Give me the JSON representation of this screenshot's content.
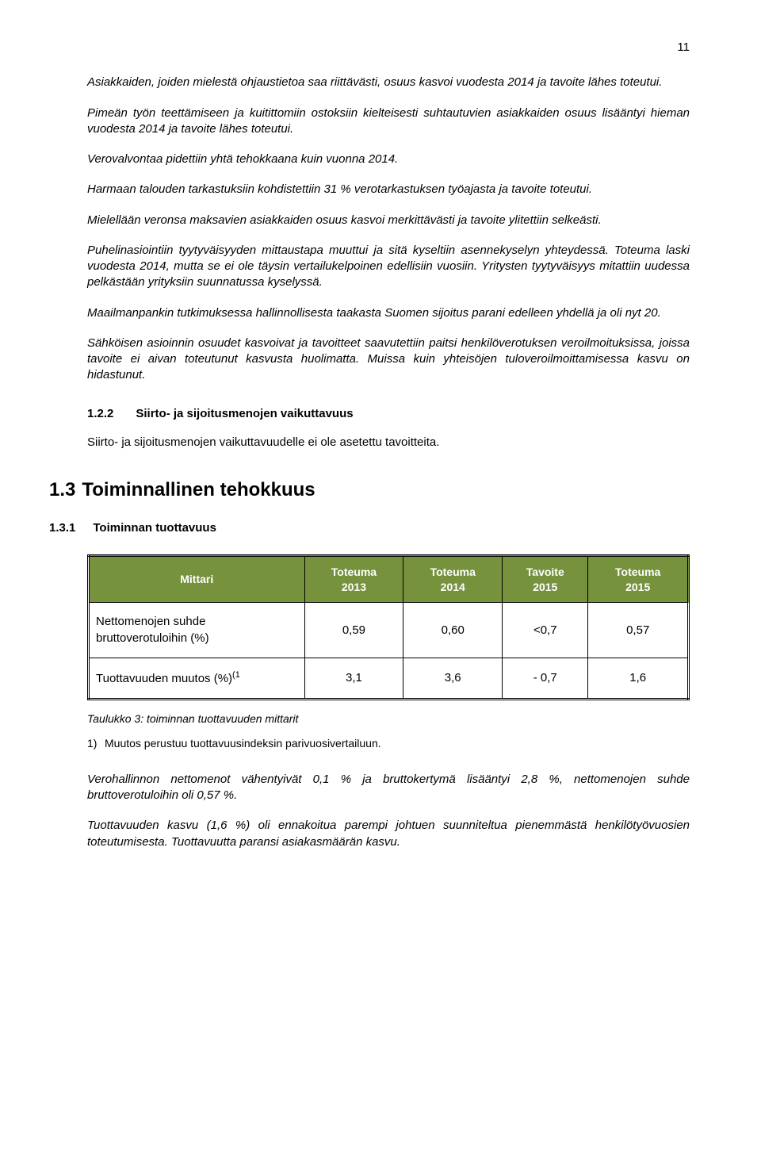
{
  "page_number": "11",
  "paragraphs": {
    "p1": "Asiakkaiden, joiden mielestä ohjaustietoa saa riittävästi, osuus kasvoi vuodesta 2014 ja tavoite lähes toteutui.",
    "p2": "Pimeän työn teettämiseen ja kuitittomiin ostoksiin kielteisesti suhtautuvien asiakkaiden osuus lisääntyi hieman vuodesta 2014 ja tavoite lähes toteutui.",
    "p3": "Verovalvontaa pidettiin yhtä tehokkaana kuin vuonna 2014.",
    "p4": "Harmaan talouden tarkastuksiin kohdistettiin 31 % verotarkastuksen työajasta ja tavoite toteutui.",
    "p5": "Mielellään veronsa maksavien asiakkaiden osuus kasvoi merkittävästi ja tavoite ylitettiin selkeästi.",
    "p6": "Puhelinasiointiin tyytyväisyyden mittaustapa muuttui ja sitä kyseltiin asennekyselyn yhteydessä. Toteuma laski vuodesta 2014, mutta se ei ole täysin vertailukelpoinen edellisiin vuosiin. Yritysten tyytyväisyys mitattiin uudessa pelkästään yrityksiin suunnatussa kyselyssä.",
    "p7": "Maailmanpankin tutkimuksessa hallinnollisesta taakasta Suomen sijoitus parani edelleen yhdellä ja oli nyt 20.",
    "p8": "Sähköisen asioinnin osuudet kasvoivat ja tavoitteet saavutettiin paitsi henkilöverotuksen veroilmoituksissa, joissa tavoite ei aivan toteutunut kasvusta huolimatta. Muissa kuin yhteisöjen tuloveroilmoittamisessa kasvu on hidastunut."
  },
  "section_122": {
    "num": "1.2.2",
    "title": "Siirto- ja sijoitusmenojen vaikuttavuus",
    "body": "Siirto- ja sijoitusmenojen vaikuttavuudelle ei ole asetettu tavoitteita."
  },
  "section_13": {
    "num": "1.3",
    "title": "Toiminnallinen tehokkuus"
  },
  "section_131": {
    "num": "1.3.1",
    "title": "Toiminnan tuottavuus"
  },
  "table": {
    "header_bg": "#76923c",
    "header_fg": "#ffffff",
    "columns": [
      "Mittari",
      "Toteuma 2013",
      "Toteuma 2014",
      "Tavoite 2015",
      "Toteuma 2015"
    ],
    "col_line1": [
      "Mittari",
      "Toteuma",
      "Toteuma",
      "Tavoite",
      "Toteuma"
    ],
    "col_line2": [
      "",
      "2013",
      "2014",
      "2015",
      "2015"
    ],
    "rows": [
      {
        "label": "Nettomenojen suhde bruttoverotuloihin (%)",
        "v": [
          "0,59",
          "0,60",
          "<0,7",
          "0,57"
        ]
      },
      {
        "label_pre": "Tuottavuuden muutos (%)",
        "label_sup": "(1",
        "v": [
          "3,1",
          "3,6",
          "- 0,7",
          "1,6"
        ]
      }
    ]
  },
  "caption": "Taulukko 3: toiminnan tuottavuuden mittarit",
  "note": {
    "num": "1)",
    "text": "Muutos perustuu tuottavuusindeksin parivuosivertailuun."
  },
  "closing": {
    "p1": "Verohallinnon nettomenot vähentyivät 0,1 % ja bruttokertymä lisääntyi 2,8 %, nettomenojen suhde bruttoverotuloihin oli 0,57 %.",
    "p2": "Tuottavuuden kasvu (1,6 %) oli ennakoitua parempi johtuen suunniteltua pienemmästä henkilötyövuosien toteutumisesta. Tuottavuutta paransi asiakasmäärän kasvu."
  }
}
